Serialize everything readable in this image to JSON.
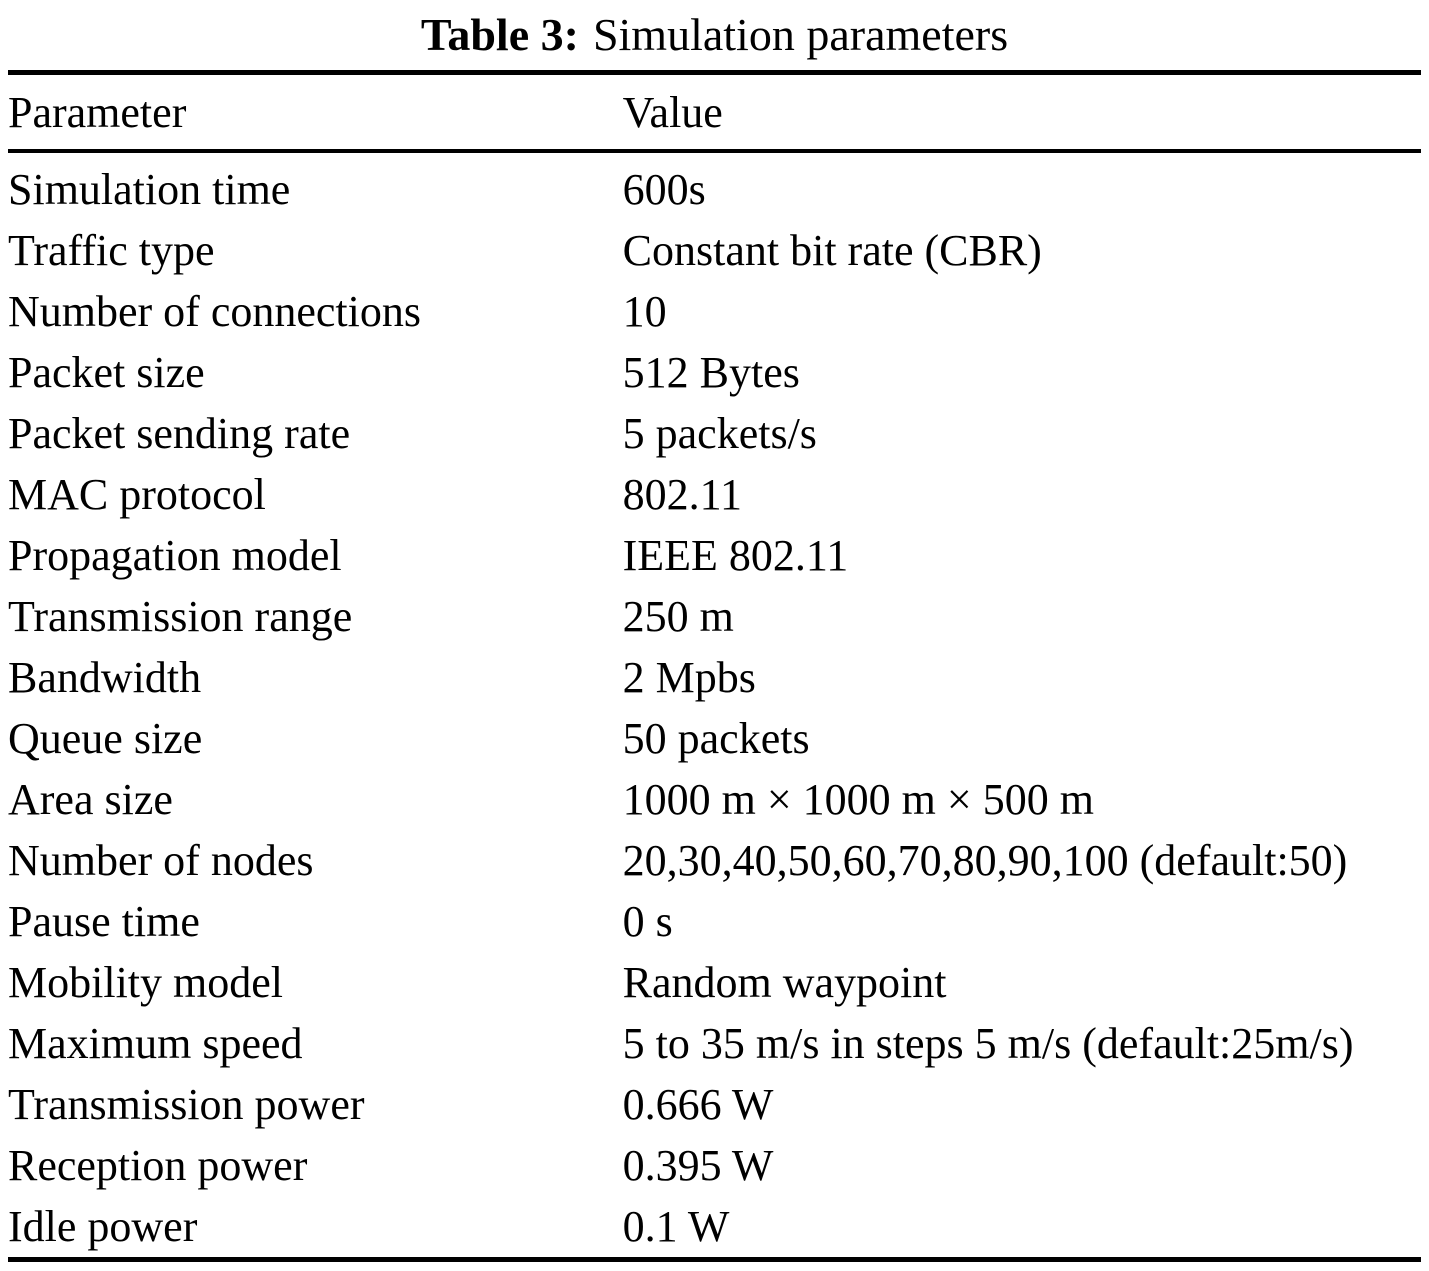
{
  "caption": {
    "label": "Table 3:",
    "title": "Simulation parameters"
  },
  "table": {
    "headers": [
      "Parameter",
      "Value"
    ],
    "rows": [
      {
        "parameter": "Simulation time",
        "value": "600s"
      },
      {
        "parameter": "Traffic type",
        "value": "Constant bit rate (CBR)"
      },
      {
        "parameter": "Number of connections",
        "value": "10"
      },
      {
        "parameter": "Packet size",
        "value": "512 Bytes"
      },
      {
        "parameter": "Packet sending rate",
        "value": "5 packets/s"
      },
      {
        "parameter": "MAC protocol",
        "value": "802.11"
      },
      {
        "parameter": "Propagation model",
        "value": "IEEE 802.11"
      },
      {
        "parameter": "Transmission range",
        "value": "250 m"
      },
      {
        "parameter": "Bandwidth",
        "value": "2 Mpbs"
      },
      {
        "parameter": "Queue size",
        "value": "50 packets"
      },
      {
        "parameter": "Area size",
        "value": "1000 m × 1000 m × 500 m"
      },
      {
        "parameter": "Number of nodes",
        "value": "20,30,40,50,60,70,80,90,100 (default:50)"
      },
      {
        "parameter": "Pause time",
        "value": "0 s"
      },
      {
        "parameter": "Mobility model",
        "value": "Random waypoint"
      },
      {
        "parameter": "Maximum speed",
        "value": "5 to 35 m/s in steps 5 m/s (default:25m/s)"
      },
      {
        "parameter": "Transmission power",
        "value": "0.666 W"
      },
      {
        "parameter": "Reception power",
        "value": "0.395 W"
      },
      {
        "parameter": "Idle power",
        "value": "0.1 W"
      }
    ]
  }
}
